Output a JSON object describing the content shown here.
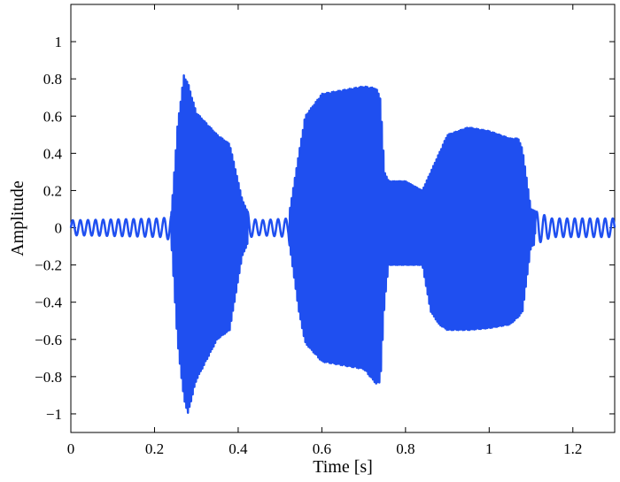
{
  "chart_data": {
    "type": "line",
    "title": "",
    "xlabel": "Time [s]",
    "ylabel": "Amplitude",
    "xlim": [
      0,
      1.3
    ],
    "ylim": [
      -1.1,
      1.2
    ],
    "grid": false,
    "x_ticks": [
      "0",
      "0.2",
      "0.4",
      "0.6",
      "0.8",
      "1",
      "1.2"
    ],
    "y_ticks": [
      "−1",
      "−0.8",
      "−0.6",
      "−0.4",
      "−0.2",
      "0",
      "0.2",
      "0.4",
      "0.6",
      "0.8",
      "1"
    ],
    "series": [
      {
        "color": "#1f4ff0",
        "line_style": "oscillating waveform",
        "envelope": {
          "x": [
            0,
            0.22,
            0.24,
            0.255,
            0.27,
            0.28,
            0.3,
            0.35,
            0.38,
            0.41,
            0.43,
            0.45,
            0.52,
            0.545,
            0.56,
            0.6,
            0.65,
            0.7,
            0.73,
            0.74,
            0.75,
            0.76,
            0.8,
            0.84,
            0.86,
            0.88,
            0.9,
            0.95,
            1.0,
            1.05,
            1.07,
            1.08,
            1.1,
            1.15,
            1.3
          ],
          "upper": [
            0.04,
            0.05,
            0.07,
            0.55,
            0.82,
            0.78,
            0.62,
            0.5,
            0.45,
            0.15,
            0.05,
            0.04,
            0.05,
            0.4,
            0.6,
            0.72,
            0.74,
            0.76,
            0.75,
            0.7,
            0.3,
            0.25,
            0.25,
            0.2,
            0.3,
            0.4,
            0.5,
            0.54,
            0.52,
            0.48,
            0.48,
            0.42,
            0.1,
            0.05,
            0.05
          ],
          "lower": [
            -0.04,
            -0.05,
            -0.07,
            -0.62,
            -0.92,
            -1.0,
            -0.82,
            -0.6,
            -0.55,
            -0.15,
            -0.05,
            -0.04,
            -0.05,
            -0.45,
            -0.62,
            -0.72,
            -0.74,
            -0.76,
            -0.84,
            -0.83,
            -0.4,
            -0.2,
            -0.2,
            -0.2,
            -0.45,
            -0.52,
            -0.55,
            -0.55,
            -0.54,
            -0.52,
            -0.48,
            -0.45,
            -0.1,
            -0.05,
            -0.05
          ]
        },
        "oscillation_frequency_hz": 260
      }
    ]
  },
  "colors": {
    "series_line": "#1f4ff0",
    "axis": "#000000",
    "background": "#ffffff"
  }
}
